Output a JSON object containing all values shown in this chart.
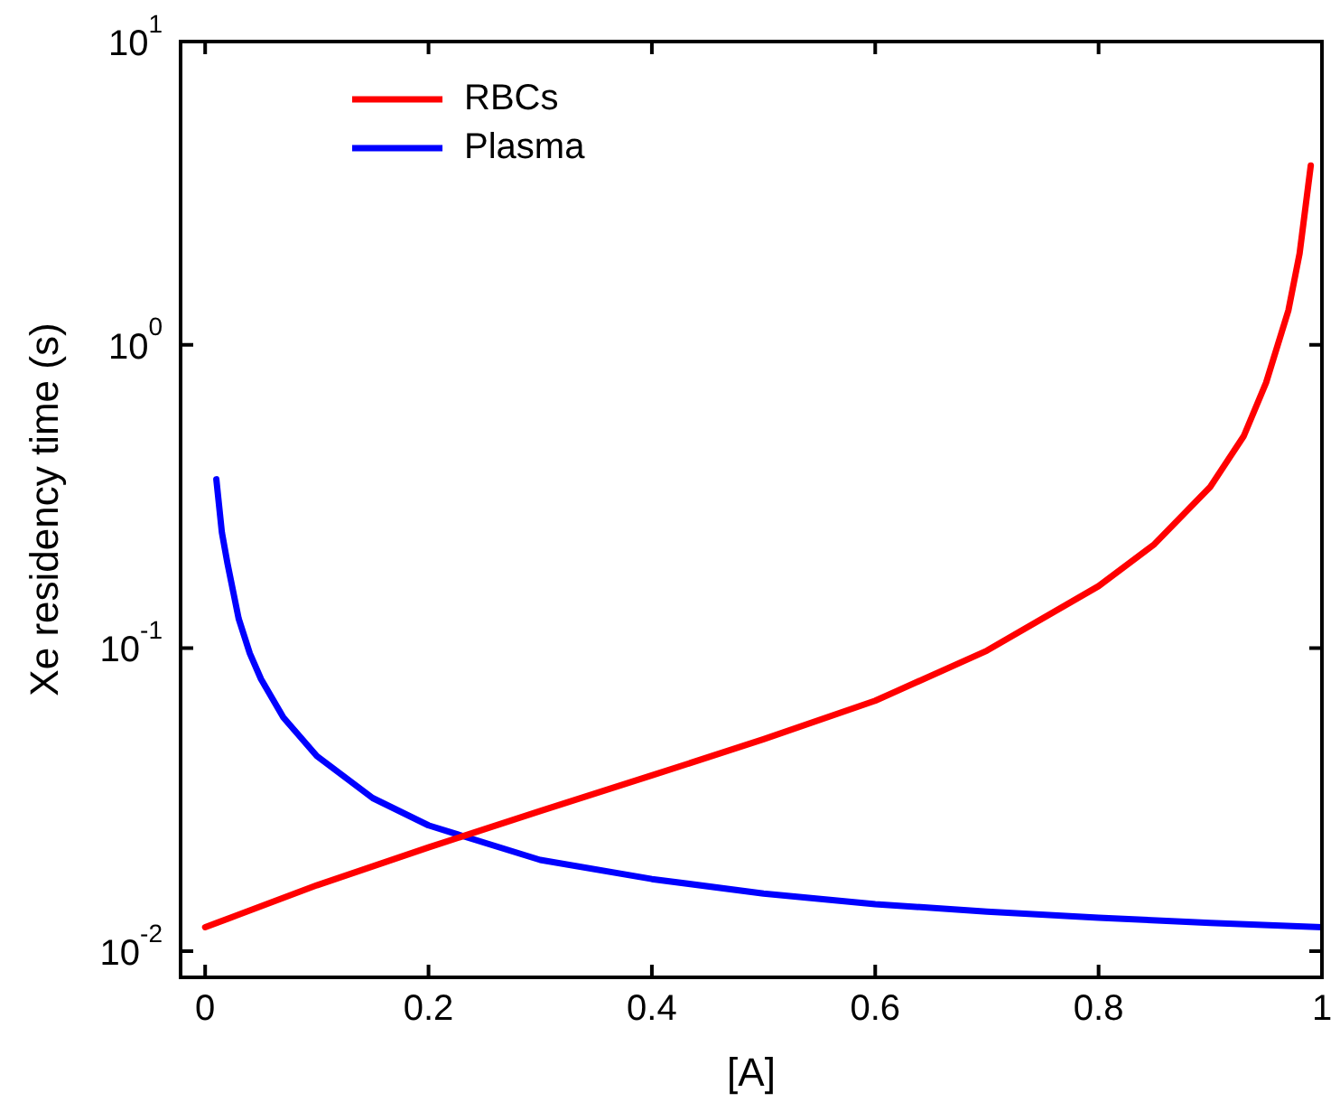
{
  "chart_data": {
    "type": "line",
    "xlabel": "[A]",
    "ylabel": "Xe residency time (s)",
    "log": "y",
    "grid": false,
    "legend": "top left",
    "line_style": "solid",
    "marker": "none",
    "xlim": [
      -0.022,
      1.0
    ],
    "xticks": [
      0,
      0.2,
      0.4,
      0.6,
      0.8,
      1
    ],
    "ylim": [
      0.0082,
      10
    ],
    "yticks": [
      {
        "value": 0.01,
        "label": "10$^{-2}$"
      },
      {
        "value": 0.1,
        "label": "10$^{-1}$"
      },
      {
        "value": 1,
        "label": "10$^{0}$"
      },
      {
        "value": 10,
        "label": "10$^{1}$"
      }
    ],
    "series": [
      {
        "name": "RBCs",
        "color": "#ff0000",
        "x": [
          0,
          0.1,
          0.2,
          0.3,
          0.4,
          0.5,
          0.6,
          0.7,
          0.8,
          0.85,
          0.9,
          0.93,
          0.95,
          0.97,
          0.98,
          0.99
        ],
        "values": [
          0.012,
          0.0165,
          0.022,
          0.029,
          0.038,
          0.05,
          0.067,
          0.098,
          0.16,
          0.22,
          0.34,
          0.5,
          0.75,
          1.3,
          2.0,
          3.9
        ]
      },
      {
        "name": "Plasma",
        "color": "#0000ff",
        "x": [
          0.01,
          0.015,
          0.02,
          0.03,
          0.04,
          0.05,
          0.07,
          0.1,
          0.15,
          0.2,
          0.3,
          0.4,
          0.5,
          0.6,
          0.7,
          0.8,
          0.9,
          1.0
        ],
        "values": [
          0.36,
          0.24,
          0.19,
          0.125,
          0.096,
          0.079,
          0.059,
          0.044,
          0.032,
          0.026,
          0.02,
          0.0173,
          0.0155,
          0.0143,
          0.0135,
          0.0129,
          0.0124,
          0.012
        ]
      }
    ]
  }
}
